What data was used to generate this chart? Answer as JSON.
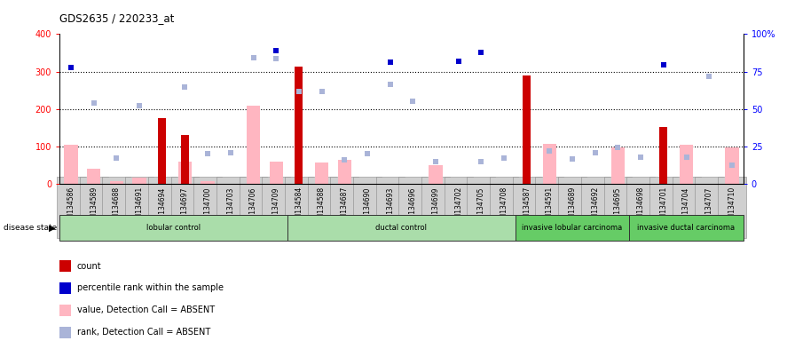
{
  "title": "GDS2635 / 220233_at",
  "samples": [
    "GSM134586",
    "GSM134589",
    "GSM134688",
    "GSM134691",
    "GSM134694",
    "GSM134697",
    "GSM134700",
    "GSM134703",
    "GSM134706",
    "GSM134709",
    "GSM134584",
    "GSM134588",
    "GSM134687",
    "GSM134690",
    "GSM134693",
    "GSM134696",
    "GSM134699",
    "GSM134702",
    "GSM134705",
    "GSM134708",
    "GSM134587",
    "GSM134591",
    "GSM134689",
    "GSM134692",
    "GSM134695",
    "GSM134698",
    "GSM134701",
    "GSM134704",
    "GSM134707",
    "GSM134710"
  ],
  "count": [
    null,
    null,
    null,
    null,
    175,
    132,
    null,
    null,
    null,
    null,
    313,
    null,
    null,
    null,
    null,
    null,
    null,
    null,
    null,
    null,
    290,
    null,
    null,
    null,
    null,
    null,
    152,
    null,
    null,
    null
  ],
  "rank_present": [
    310,
    null,
    null,
    null,
    null,
    null,
    null,
    null,
    null,
    355,
    null,
    null,
    null,
    null,
    325,
    null,
    null,
    328,
    352,
    null,
    null,
    null,
    null,
    null,
    null,
    null,
    317,
    null,
    null,
    null
  ],
  "value_absent": [
    105,
    42,
    8,
    18,
    null,
    60,
    7,
    null,
    210,
    60,
    null,
    57,
    65,
    null,
    null,
    null,
    50,
    null,
    null,
    null,
    null,
    107,
    null,
    null,
    99,
    null,
    null,
    105,
    null,
    97
  ],
  "rank_absent": [
    null,
    216,
    70,
    210,
    null,
    260,
    82,
    83,
    338,
    335,
    246,
    248,
    65,
    82,
    266,
    220,
    61,
    null,
    60,
    70,
    null,
    89,
    68,
    83,
    99,
    73,
    null,
    72,
    288,
    50
  ],
  "groups": [
    {
      "label": "lobular control",
      "start": 0,
      "end": 10,
      "color": "#aaddaa"
    },
    {
      "label": "ductal control",
      "start": 10,
      "end": 20,
      "color": "#aaddaa"
    },
    {
      "label": "invasive lobular carcinoma",
      "start": 20,
      "end": 25,
      "color": "#66cc66"
    },
    {
      "label": "invasive ductal carcinoma",
      "start": 25,
      "end": 30,
      "color": "#66cc66"
    }
  ],
  "ylim_left": [
    0,
    400
  ],
  "ylim_right": [
    0,
    100
  ],
  "yticks_left": [
    0,
    100,
    200,
    300,
    400
  ],
  "yticks_right": [
    0,
    25,
    50,
    75,
    100
  ],
  "count_color": "#cc0000",
  "rank_present_color": "#0000cc",
  "value_absent_color": "#ffb6c1",
  "rank_absent_color": "#aab4d8",
  "dotted_lines": [
    100,
    200,
    300
  ],
  "tick_bg_color": "#d0d0d0",
  "legend_items": [
    {
      "color": "#cc0000",
      "label": "count"
    },
    {
      "color": "#0000cc",
      "label": "percentile rank within the sample"
    },
    {
      "color": "#ffb6c1",
      "label": "value, Detection Call = ABSENT"
    },
    {
      "color": "#aab4d8",
      "label": "rank, Detection Call = ABSENT"
    }
  ]
}
